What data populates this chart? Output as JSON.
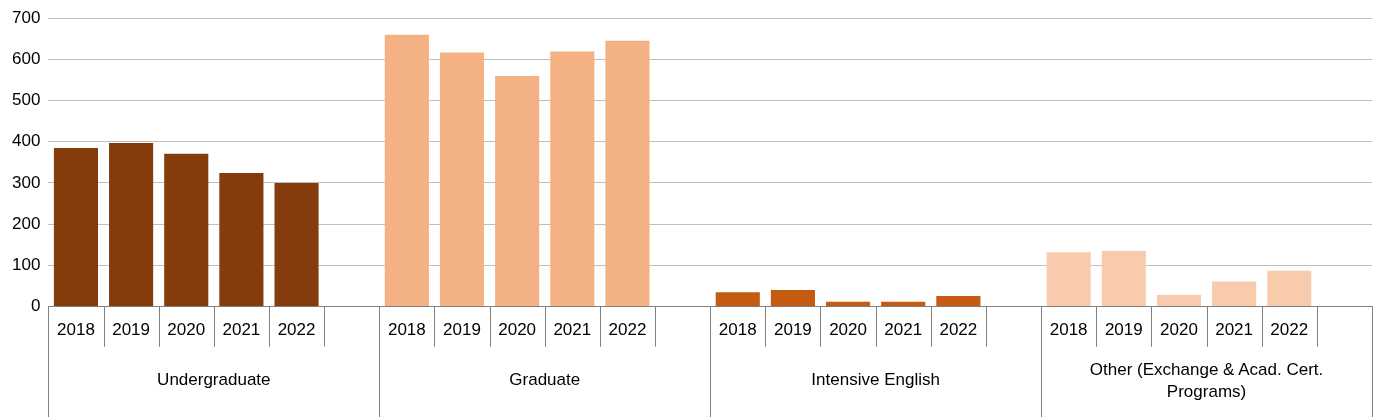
{
  "chart_data": {
    "type": "bar",
    "categories": [
      "2018",
      "2019",
      "2020",
      "2021",
      "2022",
      null,
      "2018",
      "2019",
      "2020",
      "2021",
      "2022",
      null,
      "2018",
      "2019",
      "2020",
      "2021",
      "2022",
      null,
      "2018",
      "2019",
      "2020",
      "2021",
      "2022",
      null
    ],
    "series": [
      {
        "color": "#843c0c",
        "values": [
          385,
          397,
          371,
          324,
          300,
          null,
          null,
          null,
          null,
          null,
          null,
          null,
          null,
          null,
          null,
          null,
          null,
          null,
          null,
          null,
          null,
          null,
          null,
          null
        ]
      },
      {
        "color": "#f4b183",
        "values": [
          null,
          null,
          null,
          null,
          null,
          null,
          660,
          617,
          560,
          619,
          645,
          null,
          null,
          null,
          null,
          null,
          null,
          null,
          null,
          null,
          null,
          null,
          null,
          null
        ]
      },
      {
        "color": "#c55a11",
        "values": [
          null,
          null,
          null,
          null,
          null,
          null,
          null,
          null,
          null,
          null,
          null,
          null,
          35,
          40,
          12,
          12,
          26,
          null,
          null,
          null,
          null,
          null,
          null,
          null
        ]
      },
      {
        "color": "#f8cbad",
        "values": [
          null,
          null,
          null,
          null,
          null,
          null,
          null,
          null,
          null,
          null,
          null,
          null,
          null,
          null,
          null,
          null,
          null,
          null,
          132,
          135,
          28,
          61,
          87,
          null
        ]
      }
    ],
    "annotations": [
      "Undergraduate",
      "Graduate",
      "Intensive English",
      "Other (Exchange & Acad. Cert. Programs)"
    ],
    "ylim": [
      0,
      700
    ],
    "yticks": [
      0,
      100,
      200,
      300,
      400,
      500,
      600,
      700
    ],
    "grid": "y"
  }
}
